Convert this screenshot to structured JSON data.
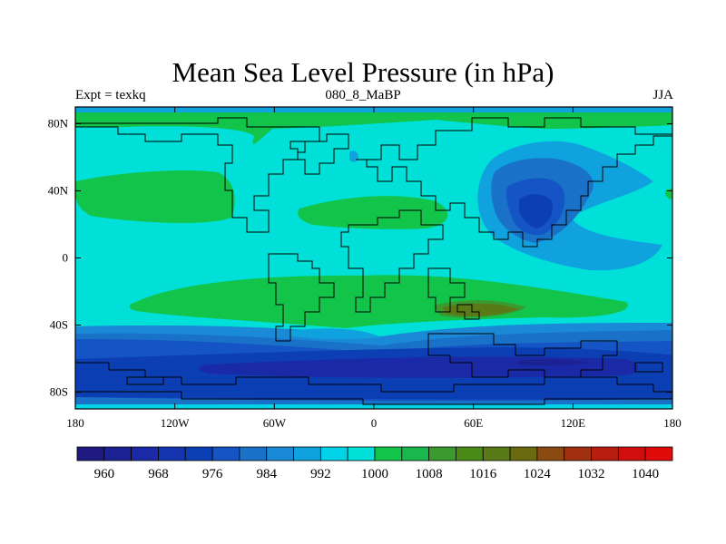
{
  "title": "Mean Sea Level Pressure (in hPa)",
  "subtitle_left": "Expt = texkq",
  "subtitle_center": "080_8_MaBP",
  "subtitle_right": "JJA",
  "colors": {
    "c960": "#1e1a82",
    "c964": "#1c2294",
    "c968": "#1a2aa6",
    "c972": "#1434b0",
    "c976": "#0d3fb4",
    "c980": "#1454c4",
    "c984": "#1a72c8",
    "c988": "#1a8ad6",
    "c992": "#10a2de",
    "c996": "#00d2e8",
    "c1000": "#00e0d8",
    "c1004": "#12c44a",
    "c1008": "#1ab84c",
    "c1012": "#3a9a30",
    "c1016": "#4c8a18",
    "c1020": "#5a7a18",
    "c1024": "#6a6a10",
    "c1028": "#8a4a10",
    "c1032": "#a03010",
    "c1036": "#b81e10",
    "c1040": "#d00e0e",
    "c1044": "#e00c0c"
  },
  "chart_data": {
    "type": "filled-contour-map",
    "title": "Mean Sea Level Pressure (in hPa)",
    "experiment": "Expt = texkq",
    "period": "080_8_MaBP",
    "season": "JJA",
    "units": "hPa",
    "x_ticks": [
      "180",
      "120W",
      "60W",
      "0",
      "60E",
      "120E",
      "180"
    ],
    "y_ticks": [
      "80N",
      "40N",
      "0",
      "40S",
      "80S"
    ],
    "x_range": [
      -180,
      180
    ],
    "y_range": [
      -90,
      90
    ],
    "colorbar_levels": [
      960,
      964,
      968,
      972,
      976,
      980,
      984,
      988,
      992,
      996,
      1000,
      1004,
      1008,
      1012,
      1016,
      1020,
      1024,
      1028,
      1032,
      1036,
      1040
    ],
    "colorbar_labels": [
      "960",
      "968",
      "976",
      "984",
      "992",
      "1000",
      "1008",
      "1016",
      "1024",
      "1032",
      "1040"
    ]
  }
}
